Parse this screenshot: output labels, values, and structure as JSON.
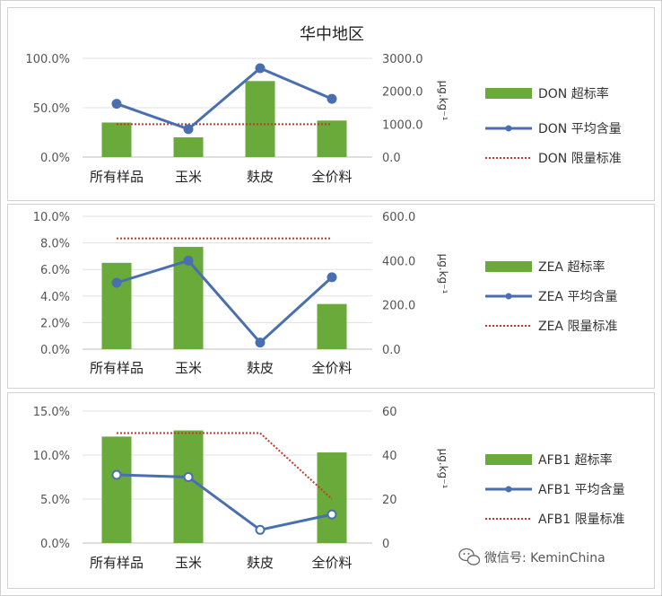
{
  "chart_data": [
    {
      "type": "bar",
      "title": "华中地区",
      "categories": [
        "所有样品",
        "玉米",
        "麸皮",
        "全价料"
      ],
      "series": [
        {
          "name": "DON 超标率",
          "kind": "bar",
          "axis": "left",
          "values": [
            0.35,
            0.2,
            0.77,
            0.37
          ]
        },
        {
          "name": "DON 平均含量",
          "kind": "line",
          "axis": "right",
          "values": [
            1620,
            850,
            2700,
            1770
          ]
        },
        {
          "name": "DON 限量标准",
          "kind": "limit",
          "axis": "right",
          "values": [
            1000,
            1000,
            1000,
            1000
          ]
        }
      ],
      "left_ticks": [
        "0.0%",
        "50.0%",
        "100.0%"
      ],
      "left_ylim": [
        0,
        1
      ],
      "right_ticks": [
        "0.0",
        "1000.0",
        "2000.0",
        "3000.0"
      ],
      "right_ylim": [
        0,
        3000
      ],
      "right_unit": "μg.kg⁻¹",
      "legend": "right",
      "colors": {
        "bar": "#6aaa3a",
        "line": "#4a6fb0",
        "limit": "#c0392b"
      }
    },
    {
      "type": "bar",
      "title": "",
      "categories": [
        "所有样品",
        "玉米",
        "麸皮",
        "全价料"
      ],
      "series": [
        {
          "name": "ZEA 超标率",
          "kind": "bar",
          "axis": "left",
          "values": [
            0.065,
            0.077,
            0,
            0.034
          ]
        },
        {
          "name": "ZEA 平均含量",
          "kind": "line",
          "axis": "right",
          "values": [
            300,
            400,
            30,
            325
          ]
        },
        {
          "name": "ZEA 限量标准",
          "kind": "limit",
          "axis": "right",
          "values": [
            500,
            500,
            500,
            500
          ]
        }
      ],
      "left_ticks": [
        "0.0%",
        "2.0%",
        "4.0%",
        "6.0%",
        "8.0%",
        "10.0%"
      ],
      "left_ylim": [
        0,
        0.1
      ],
      "right_ticks": [
        "0.0",
        "200.0",
        "400.0",
        "600.0"
      ],
      "right_ylim": [
        0,
        600
      ],
      "right_unit": "μg.kg⁻¹",
      "legend": "right",
      "colors": {
        "bar": "#6aaa3a",
        "line": "#4a6fb0",
        "limit": "#c0392b"
      }
    },
    {
      "type": "bar",
      "title": "",
      "categories": [
        "所有样品",
        "玉米",
        "麸皮",
        "全价料"
      ],
      "series": [
        {
          "name": "AFB1 超标率",
          "kind": "bar",
          "axis": "left",
          "values": [
            0.121,
            0.128,
            0,
            0.103
          ]
        },
        {
          "name": "AFB1 平均含量",
          "kind": "line",
          "axis": "right",
          "values": [
            31,
            30,
            6,
            13
          ]
        },
        {
          "name": "AFB1 限量标准",
          "kind": "limit",
          "axis": "right",
          "values": [
            50,
            50,
            50,
            20
          ]
        }
      ],
      "left_ticks": [
        "0.0%",
        "5.0%",
        "10.0%",
        "15.0%"
      ],
      "left_ylim": [
        0,
        0.15
      ],
      "right_ticks": [
        "0",
        "20",
        "40",
        "60"
      ],
      "right_ylim": [
        0,
        60
      ],
      "right_unit": "μg.kg⁻¹",
      "legend": "right",
      "colors": {
        "bar": "#6aaa3a",
        "line": "#4a6fb0",
        "limit": "#c0392b"
      }
    }
  ],
  "watermark": {
    "text": "微信号: KeminChina",
    "icon": "wechat-icon"
  }
}
